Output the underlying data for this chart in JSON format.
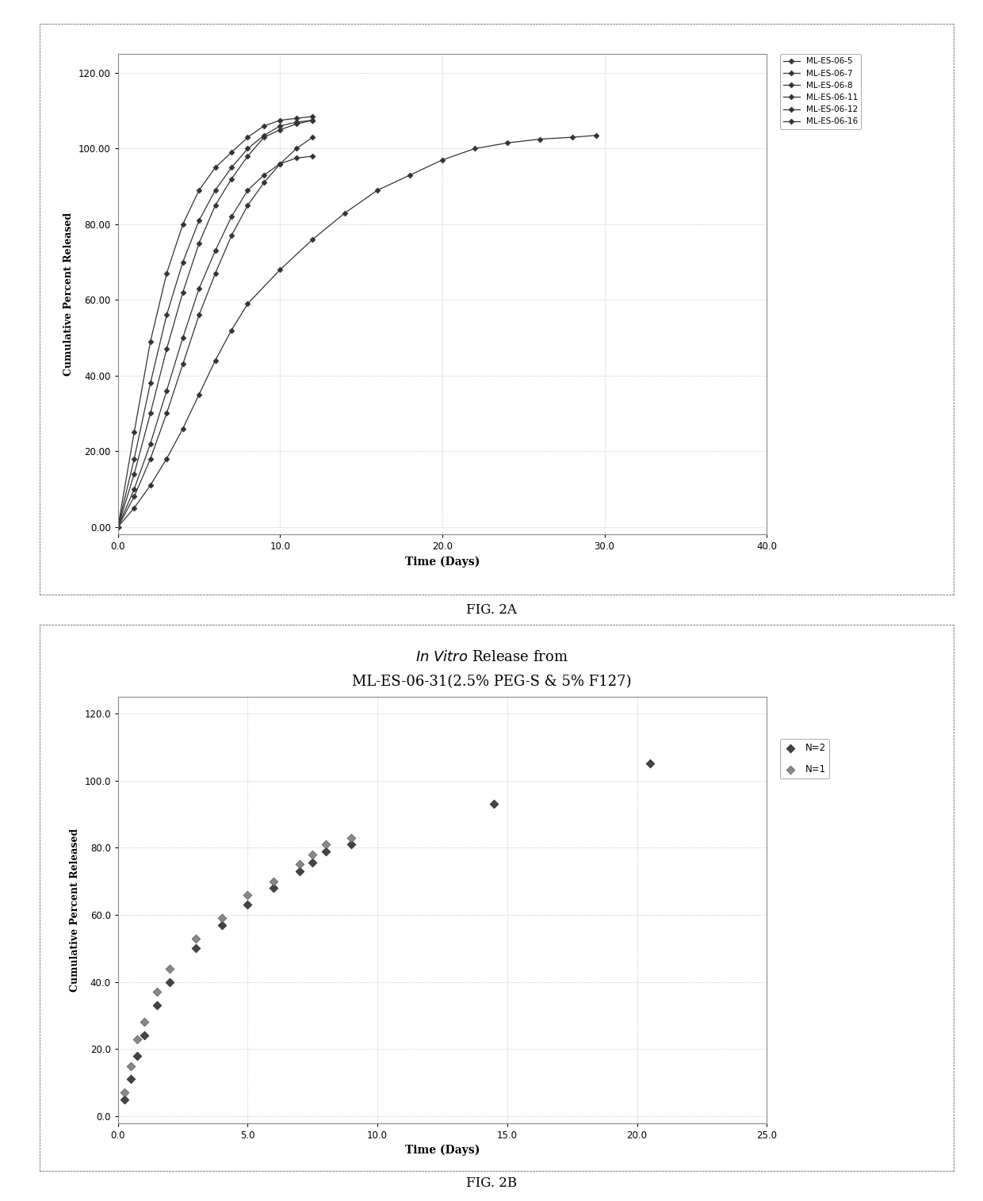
{
  "fig2a": {
    "xlabel": "Time (Days)",
    "ylabel": "Cumulative Percent Released",
    "xlim": [
      0,
      40
    ],
    "ylim": [
      0,
      120
    ],
    "xticks": [
      0.0,
      10.0,
      20.0,
      30.0,
      40.0
    ],
    "yticks": [
      0.0,
      20.0,
      40.0,
      60.0,
      80.0,
      100.0,
      120.0
    ],
    "series": [
      {
        "label": "ML-ES-06-5",
        "x": [
          0.0,
          1.0,
          2.0,
          3.0,
          4.0,
          5.0,
          6.0,
          7.0,
          8.0,
          9.0,
          10.0,
          11.0,
          12.0
        ],
        "y": [
          0.0,
          14.0,
          30.0,
          47.0,
          62.0,
          75.0,
          85.0,
          92.0,
          98.0,
          103.0,
          105.0,
          106.5,
          107.5
        ]
      },
      {
        "label": "ML-ES-06-7",
        "x": [
          0.0,
          1.0,
          2.0,
          3.0,
          4.0,
          5.0,
          6.0,
          7.0,
          8.0,
          9.0,
          10.0,
          11.0,
          12.0
        ],
        "y": [
          0.0,
          10.0,
          22.0,
          36.0,
          50.0,
          63.0,
          73.0,
          82.0,
          89.0,
          93.0,
          96.0,
          97.5,
          98.0
        ]
      },
      {
        "label": "ML-ES-06-8",
        "x": [
          0.0,
          1.0,
          2.0,
          3.0,
          4.0,
          5.0,
          6.0,
          7.0,
          8.0,
          9.0,
          10.0,
          11.0,
          12.0
        ],
        "y": [
          0.0,
          8.0,
          18.0,
          30.0,
          43.0,
          56.0,
          67.0,
          77.0,
          85.0,
          91.0,
          96.0,
          100.0,
          103.0
        ]
      },
      {
        "label": "ML-ES-06-11",
        "x": [
          0.0,
          1.0,
          2.0,
          3.0,
          4.0,
          5.0,
          6.0,
          7.0,
          8.0,
          10.0,
          12.0,
          14.0,
          16.0,
          18.0,
          20.0,
          22.0,
          24.0,
          26.0,
          28.0,
          29.5
        ],
        "y": [
          0.0,
          5.0,
          11.0,
          18.0,
          26.0,
          35.0,
          44.0,
          52.0,
          59.0,
          68.0,
          76.0,
          83.0,
          89.0,
          93.0,
          97.0,
          100.0,
          101.5,
          102.5,
          103.0,
          103.5
        ]
      },
      {
        "label": "ML-ES-06-12",
        "x": [
          0.0,
          1.0,
          2.0,
          3.0,
          4.0,
          5.0,
          6.0,
          7.0,
          8.0,
          9.0,
          10.0,
          11.0,
          12.0
        ],
        "y": [
          0.0,
          18.0,
          38.0,
          56.0,
          70.0,
          81.0,
          89.0,
          95.0,
          100.0,
          103.5,
          106.0,
          107.0,
          107.5
        ]
      },
      {
        "label": "ML-ES-06-16",
        "x": [
          0.0,
          1.0,
          2.0,
          3.0,
          4.0,
          5.0,
          6.0,
          7.0,
          8.0,
          9.0,
          10.0,
          11.0,
          12.0
        ],
        "y": [
          0.0,
          25.0,
          49.0,
          67.0,
          80.0,
          89.0,
          95.0,
          99.0,
          103.0,
          106.0,
          107.5,
          108.0,
          108.5
        ]
      }
    ]
  },
  "fig2b": {
    "title_line1": "In Vitro Release from",
    "title_line2": "ML-ES-06-31(2.5% PEG-S & 5% F127)",
    "xlabel": "Time (Days)",
    "ylabel": "Cumulative Percent Released",
    "xlim": [
      0,
      25
    ],
    "ylim": [
      0,
      120
    ],
    "xticks": [
      0.0,
      5.0,
      10.0,
      15.0,
      20.0,
      25.0
    ],
    "yticks": [
      0.0,
      20.0,
      40.0,
      60.0,
      80.0,
      100.0,
      120.0
    ],
    "series_n2": {
      "label": "N=2",
      "x": [
        0.25,
        0.5,
        0.75,
        1.0,
        1.5,
        2.0,
        3.0,
        4.0,
        5.0,
        6.0,
        7.0,
        7.5,
        8.0,
        9.0,
        14.5,
        20.5
      ],
      "y": [
        5.0,
        11.0,
        18.0,
        24.0,
        33.0,
        40.0,
        50.0,
        57.0,
        63.0,
        68.0,
        73.0,
        75.5,
        79.0,
        81.0,
        93.0,
        105.0
      ]
    },
    "series_n1": {
      "label": "N=1",
      "x": [
        0.25,
        0.5,
        0.75,
        1.0,
        1.5,
        2.0,
        3.0,
        4.0,
        5.0,
        6.0,
        7.0,
        7.5,
        8.0,
        9.0
      ],
      "y": [
        7.0,
        15.0,
        23.0,
        28.0,
        37.0,
        44.0,
        53.0,
        59.0,
        66.0,
        70.0,
        75.0,
        78.0,
        81.0,
        83.0
      ]
    }
  },
  "fig2a_caption": "FIG. 2A",
  "fig2b_caption": "FIG. 2B"
}
